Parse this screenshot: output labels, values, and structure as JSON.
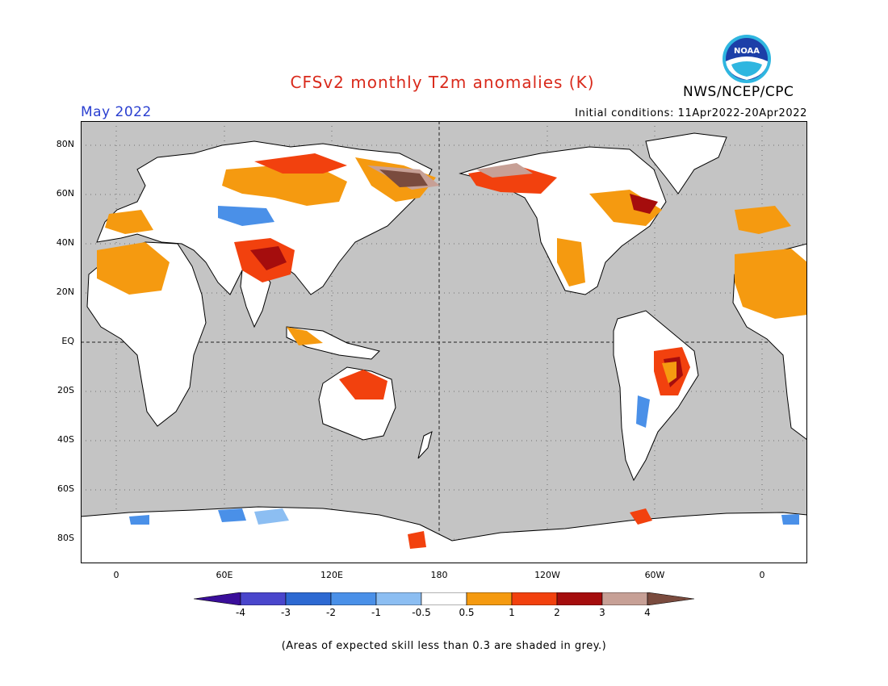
{
  "title": "CFSv2 monthly T2m anomalies (K)",
  "agency": "NWS/NCEP/CPC",
  "logo_text": "NOAA",
  "month_label": "May 2022",
  "initial_conditions": "Initial conditions: 11Apr2022-20Apr2022",
  "lat_labels": [
    "80N",
    "60N",
    "40N",
    "20N",
    "EQ",
    "20S",
    "40S",
    "60S",
    "80S"
  ],
  "lon_labels": [
    "0",
    "60E",
    "120E",
    "180",
    "120W",
    "60W",
    "0"
  ],
  "colorbar": {
    "labels": [
      "-4",
      "-3",
      "-2",
      "-1",
      "-0.5",
      "0.5",
      "1",
      "2",
      "3",
      "4"
    ],
    "colors": [
      "#3a0e9a",
      "#4a46cc",
      "#2d69d2",
      "#4a90e8",
      "#8cbef2",
      "#ffffff",
      "#f59a10",
      "#f2410e",
      "#a50d0d",
      "#c7a096",
      "#7a4b3e"
    ]
  },
  "colors": {
    "grey": "#c4c4c4",
    "land": "#ffffff",
    "title": "#d92a1c",
    "month": "#2a3fd0"
  },
  "footnote": "(Areas of expected skill less than 0.3 are shaded in grey.)"
}
